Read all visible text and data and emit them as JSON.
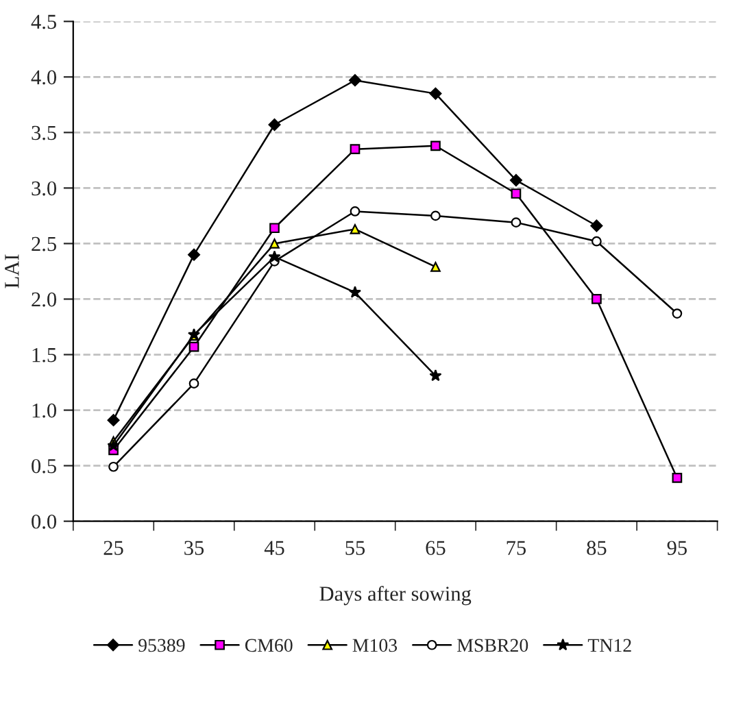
{
  "chart_data": {
    "type": "line",
    "xlabel": "Days after sowing",
    "ylabel": "LAI",
    "categories": [
      "25",
      "35",
      "45",
      "55",
      "65",
      "75",
      "85",
      "95"
    ],
    "ylim": [
      0,
      4.5
    ],
    "yticks": [
      {
        "value": 0,
        "label": "0.0"
      },
      {
        "value": 0.5,
        "label": "0.5"
      },
      {
        "value": 1,
        "label": "1.0"
      },
      {
        "value": 1.5,
        "label": "1.5"
      },
      {
        "value": 2,
        "label": "2.0"
      },
      {
        "value": 2.5,
        "label": "2.5"
      },
      {
        "value": 3,
        "label": "3.0"
      },
      {
        "value": 3.5,
        "label": "3.5"
      },
      {
        "value": 4,
        "label": "4.0"
      },
      {
        "value": 4.5,
        "label": "4.5"
      }
    ],
    "grid": "y",
    "legend": "bottom",
    "line_style": "solid",
    "series": [
      {
        "name": "95389",
        "color": "#000000",
        "marker": "diamond",
        "values": [
          0.91,
          2.4,
          3.57,
          3.97,
          3.85,
          3.07,
          2.66,
          null
        ]
      },
      {
        "name": "CM60",
        "color": "#ff00ff",
        "marker": "square",
        "values": [
          0.64,
          1.57,
          2.64,
          3.35,
          3.38,
          2.95,
          2.0,
          0.39
        ]
      },
      {
        "name": "M103",
        "color": "#ffff00",
        "marker": "triangle",
        "values": [
          0.72,
          1.67,
          2.5,
          2.63,
          2.29,
          null,
          null,
          null
        ]
      },
      {
        "name": "MSBR20",
        "color": "#ffffff",
        "marker": "circle",
        "values": [
          0.49,
          1.24,
          2.34,
          2.79,
          2.75,
          2.69,
          2.52,
          1.87
        ]
      },
      {
        "name": "TN12",
        "color": "#000000",
        "marker": "star",
        "values": [
          0.68,
          1.68,
          2.38,
          2.06,
          1.31,
          null,
          null,
          null
        ]
      }
    ]
  }
}
